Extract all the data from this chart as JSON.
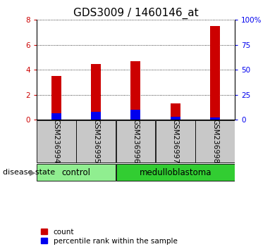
{
  "title": "GDS3009 / 1460146_at",
  "samples": [
    "GSM236994",
    "GSM236995",
    "GSM236996",
    "GSM236997",
    "GSM236998"
  ],
  "count_values": [
    3.5,
    4.45,
    4.7,
    1.3,
    7.5
  ],
  "percentile_values": [
    6.25,
    7.5,
    10.0,
    2.5,
    2.0
  ],
  "groups": [
    {
      "label": "control",
      "start": 0,
      "end": 1,
      "color": "#90EE90"
    },
    {
      "label": "medulloblastoma",
      "start": 2,
      "end": 4,
      "color": "#32CD32"
    }
  ],
  "ylim_left": [
    0,
    8
  ],
  "ylim_right": [
    0,
    100
  ],
  "yticks_left": [
    0,
    2,
    4,
    6,
    8
  ],
  "yticks_right": [
    0,
    25,
    50,
    75,
    100
  ],
  "bar_color_red": "#CC0000",
  "bar_color_blue": "#0000EE",
  "tick_bg_color": "#C8C8C8",
  "left_tick_color": "#CC0000",
  "right_tick_color": "#0000EE",
  "title_fontsize": 11,
  "tick_fontsize": 7.5,
  "label_fontsize": 7.5,
  "legend_fontsize": 7.5,
  "group_fontsize": 8.5,
  "disease_state_fontsize": 8.0,
  "bar_width": 0.25
}
